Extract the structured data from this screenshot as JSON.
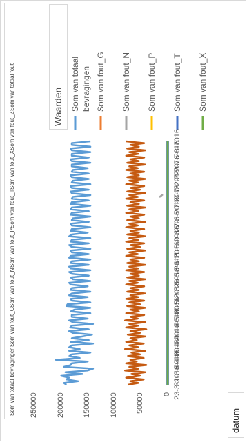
{
  "field_buttons": [
    "Som van totaal bevragingen",
    "Som van fout_G",
    "Som van fout_N",
    "Som van fout_P",
    "Som van fout_T",
    "Som van fout_X",
    "Som van fout_Z",
    "Som van totaal fout"
  ],
  "axis_field_button": "datum",
  "legend": {
    "title": "Waarden",
    "entries": [
      {
        "label_lines": [
          "Som van totaal",
          "bevragingen"
        ],
        "color": "#5b9bd5"
      },
      {
        "label_lines": [
          "Som van fout_G"
        ],
        "color": "#ed7d31"
      },
      {
        "label_lines": [
          "Som van fout_N"
        ],
        "color": "#a5a5a5"
      },
      {
        "label_lines": [
          "Som van fout_P"
        ],
        "color": "#ffc000"
      },
      {
        "label_lines": [
          "Som van fout_T"
        ],
        "color": "#4472c4"
      },
      {
        "label_lines": [
          "Som van fout_X"
        ],
        "color": "#70ad47"
      }
    ]
  },
  "chart_data": {
    "type": "line",
    "orientation": "rotated -90deg (x axis runs bottom-to-top)",
    "ylim": [
      0,
      250000
    ],
    "y_ticks": [
      0,
      50000,
      100000,
      150000,
      200000,
      250000
    ],
    "x_tick_labels": [
      "23-3-2016",
      "31-3-2016",
      "8-4-2016",
      "16-4-2016",
      "24-4-2016",
      "2-5-2016",
      "10-5-2016",
      "18-5-2016",
      "26-5-2016",
      "3-6-2016",
      "11-6-2016",
      "19-6-2016",
      "27-6-2016",
      "5-7-2016",
      "13-7-2016",
      "21-7-2016",
      "29-7-2016",
      "6-8-2016"
    ],
    "x_start": "23-3-2016",
    "x_end": "6-8-2016",
    "gridlines": false,
    "legend_position": "top",
    "series": [
      {
        "name": "Som van totaal bevragingen",
        "color": "#5b9bd5",
        "values": [
          190000,
          195000,
          168000,
          190000,
          185000,
          200000,
          160000,
          192000,
          150000,
          140000,
          195000,
          182000,
          180000,
          150000,
          210000,
          165000,
          185000,
          180000,
          145000,
          185000,
          165000,
          185000,
          180000,
          140000,
          182000,
          148000,
          180000,
          160000,
          142000,
          178000,
          185000,
          148000,
          183000,
          180000,
          140000,
          178000,
          185000,
          150000,
          180000,
          180000,
          145000,
          182000,
          175000,
          145000,
          190000,
          188000,
          145000,
          180000,
          182000,
          150000,
          185000,
          180000,
          145000,
          182000,
          180000,
          150000,
          182000,
          185000,
          145000,
          178000,
          182000,
          148000,
          180000,
          185000,
          145000,
          182000,
          185000,
          148000,
          182000,
          180000,
          145000,
          185000,
          182000,
          148000,
          180000,
          182000,
          145000,
          180000,
          185000,
          148000,
          182000,
          180000,
          145000,
          185000,
          180000,
          150000,
          182000,
          180000,
          145000,
          180000,
          182000,
          148000,
          180000,
          178000,
          145000,
          182000,
          180000,
          148000,
          182000,
          180000,
          145000,
          182000,
          180000,
          148000,
          180000,
          178000,
          145000,
          180000,
          182000,
          148000,
          180000,
          182000,
          145000,
          180000,
          178000,
          148000,
          180000,
          182000,
          148000,
          180000,
          178000,
          150000,
          180000,
          180000,
          145000,
          180000,
          182000,
          148000,
          180000,
          180000,
          145000,
          180000,
          182000,
          145000,
          180000,
          180000,
          145000
        ]
      },
      {
        "name": "Som van fout_G",
        "color": "#c55a11",
        "values": [
          75000,
          55000,
          70000,
          45000,
          78000,
          52000,
          68000,
          42000,
          80000,
          55000,
          72000,
          40000,
          78000,
          58000,
          70000,
          45000,
          75000,
          52000,
          68000,
          42000,
          80000,
          55000,
          72000,
          45000,
          78000,
          58000,
          70000,
          42000,
          75000,
          52000,
          70000,
          40000,
          78000,
          55000,
          72000,
          42000,
          80000,
          56000,
          70000,
          44000,
          78000,
          54000,
          70000,
          42000,
          76000,
          52000,
          72000,
          44000,
          78000,
          55000,
          70000,
          42000,
          76000,
          54000,
          70000,
          44000,
          78000,
          56000,
          72000,
          42000,
          76000,
          54000,
          70000,
          44000,
          78000,
          55000,
          72000,
          42000,
          76000,
          54000,
          70000,
          44000,
          78000,
          56000,
          72000,
          42000,
          76000,
          52000,
          70000,
          44000,
          78000,
          55000,
          72000,
          42000,
          76000,
          54000,
          70000,
          44000,
          78000,
          56000,
          72000,
          42000,
          76000,
          54000,
          70000,
          44000,
          78000,
          55000,
          72000,
          42000,
          76000,
          54000,
          70000,
          44000,
          78000,
          56000,
          72000,
          42000,
          76000,
          52000,
          70000,
          44000,
          78000,
          55000,
          72000,
          42000,
          76000,
          54000,
          70000,
          44000,
          78000,
          56000,
          72000,
          42000,
          76000,
          54000,
          70000,
          44000,
          78000,
          55000,
          72000,
          42000,
          76000,
          54000,
          70000,
          44000,
          78000
        ]
      },
      {
        "name": "Som van fout_N",
        "color": "#a5a5a5",
        "values": [
          0,
          0,
          0,
          0,
          0,
          0,
          0,
          0,
          0,
          0,
          0,
          0,
          0,
          0,
          0,
          0,
          0,
          0,
          0,
          0,
          0,
          0,
          0,
          0,
          0,
          0,
          0,
          0,
          0,
          0,
          0,
          0,
          0,
          0,
          0,
          0,
          0,
          0,
          0,
          0,
          0,
          0,
          0,
          0,
          0,
          0,
          0,
          0,
          0,
          0,
          0,
          0,
          0,
          0,
          0,
          0,
          0,
          0,
          0,
          0,
          0,
          0,
          0,
          0,
          0,
          0,
          0,
          0,
          0,
          0,
          0,
          0,
          0,
          0,
          0,
          0,
          0,
          0,
          0,
          0,
          0,
          0,
          0,
          0,
          0,
          0,
          0,
          0,
          0,
          0,
          0,
          0,
          0,
          0,
          0,
          0,
          0,
          0,
          0,
          0,
          0,
          0,
          0,
          0,
          0,
          0,
          0,
          0,
          0,
          0,
          0,
          0,
          0,
          0,
          0,
          0,
          0,
          0,
          0,
          0,
          0,
          0,
          0,
          0,
          0,
          0,
          0,
          0,
          0,
          0,
          0,
          0,
          0,
          0,
          0,
          0,
          0,
          0,
          0,
          0
        ]
      },
      {
        "name": "Som van fout_P",
        "color": "#ffc000",
        "values": [
          0,
          0,
          0,
          0,
          0,
          0,
          0,
          0,
          0,
          0,
          0,
          0,
          0,
          0,
          0,
          0,
          0,
          0,
          0,
          0,
          0,
          0,
          0,
          0,
          0,
          0,
          0,
          0,
          0,
          0,
          0,
          0,
          0,
          0,
          0,
          0,
          0,
          0,
          0,
          0,
          0,
          0,
          0,
          0,
          0,
          0,
          0,
          0,
          0,
          0,
          0,
          0,
          0,
          0,
          0,
          0,
          0,
          0,
          0,
          0,
          0,
          0,
          0,
          0,
          0,
          0,
          0,
          0,
          0,
          0,
          0,
          0,
          0,
          0,
          0,
          0,
          0,
          0,
          0,
          0,
          0,
          0,
          0,
          0,
          0,
          0,
          0,
          0,
          0,
          0,
          0,
          0,
          0,
          0,
          0,
          0,
          0,
          0,
          0,
          0,
          0,
          0,
          0,
          0,
          0,
          0,
          0,
          0,
          0,
          0,
          0,
          0,
          0,
          0,
          0,
          0,
          0,
          0,
          0,
          0,
          0,
          0,
          0,
          0,
          0,
          0,
          0,
          0,
          0,
          0,
          0,
          0,
          0,
          0,
          0,
          0,
          0,
          0,
          0,
          0
        ]
      },
      {
        "name": "Som van fout_T",
        "color": "#255e91",
        "values": [
          0,
          0,
          0,
          0,
          0,
          0,
          0,
          0,
          0,
          0,
          0,
          0,
          0,
          0,
          0,
          0,
          0,
          0,
          0,
          0,
          0,
          0,
          0,
          0,
          0,
          0,
          0,
          0,
          0,
          0,
          0,
          0,
          0,
          0,
          0,
          0,
          0,
          0,
          0,
          0,
          0,
          0,
          0,
          0,
          0,
          0,
          0,
          0,
          0,
          0,
          0,
          0,
          0,
          0,
          0,
          0,
          0,
          0,
          0,
          0,
          0,
          0,
          0,
          0,
          0,
          0,
          0,
          0,
          0,
          0,
          0,
          0,
          0,
          0,
          0,
          0,
          0,
          0,
          0,
          0,
          0,
          0,
          0,
          0,
          0,
          0,
          0,
          0,
          0,
          0,
          0,
          0,
          0,
          0,
          0,
          0,
          0,
          0,
          0,
          0,
          0,
          0,
          0,
          0,
          0,
          0,
          0,
          0,
          0,
          0,
          0,
          0,
          0,
          0,
          0,
          0,
          0,
          0,
          0,
          0,
          0,
          0,
          0,
          0,
          0,
          0,
          0,
          0,
          0,
          0,
          0,
          0,
          0,
          0,
          0,
          0,
          0,
          0,
          0,
          0
        ]
      },
      {
        "name": "Som van fout_X",
        "color": "#70ad47",
        "values": [
          0,
          0,
          0,
          0,
          0,
          0,
          0,
          0,
          0,
          0,
          0,
          0,
          0,
          0,
          0,
          0,
          0,
          0,
          0,
          0,
          0,
          0,
          0,
          0,
          0,
          0,
          0,
          0,
          0,
          0,
          0,
          0,
          0,
          0,
          0,
          0,
          0,
          0,
          0,
          0,
          0,
          0,
          0,
          0,
          0,
          0,
          0,
          0,
          0,
          0,
          0,
          0,
          0,
          0,
          0,
          0,
          0,
          0,
          0,
          0,
          0,
          0,
          0,
          0,
          0,
          0,
          0,
          0,
          0,
          0,
          0,
          0,
          0,
          0,
          0,
          0,
          0,
          0,
          0,
          0,
          0,
          0,
          0,
          0,
          0,
          0,
          0,
          0,
          0,
          0,
          0,
          0,
          0,
          0,
          0,
          0,
          0,
          0,
          0,
          0,
          0,
          0,
          0,
          0,
          0,
          0,
          0,
          0,
          0,
          0,
          0,
          0,
          0,
          0,
          0,
          0,
          0,
          0,
          0,
          0,
          0,
          0,
          0,
          0,
          0,
          0,
          0,
          0,
          0,
          0,
          0,
          0,
          0,
          0,
          0,
          0,
          0,
          0,
          0,
          0
        ]
      }
    ]
  }
}
